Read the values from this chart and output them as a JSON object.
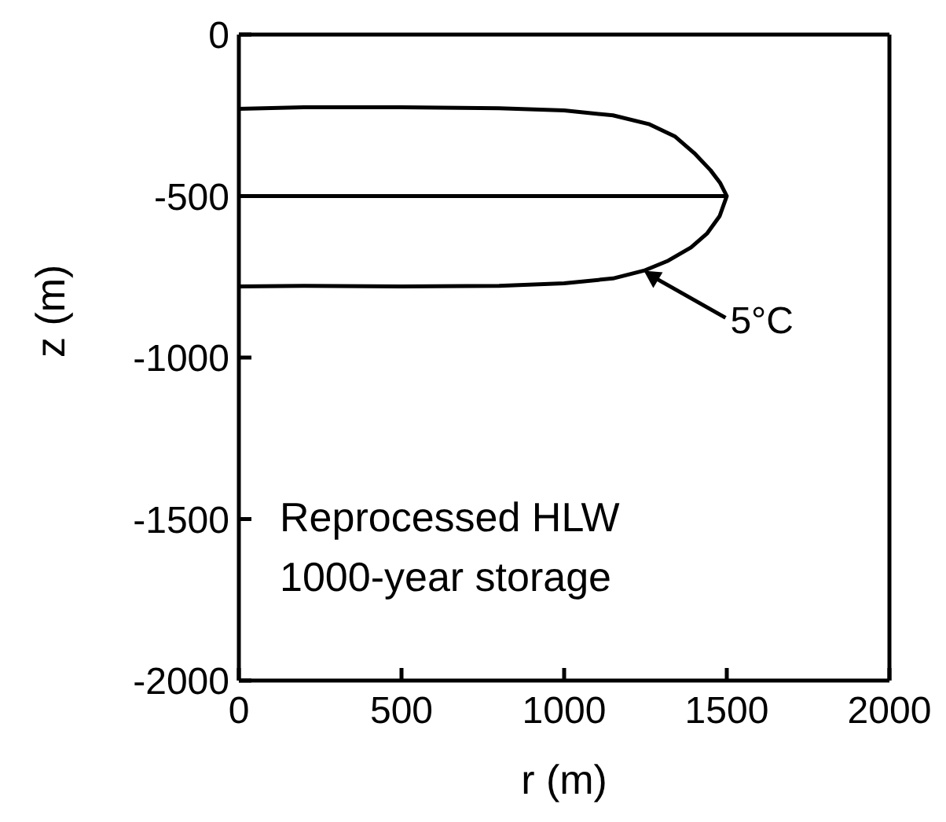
{
  "chart_data": {
    "type": "line",
    "xlabel": "r (m)",
    "ylabel": "z (m)",
    "xlim": [
      0,
      2000
    ],
    "ylim": [
      -2000,
      0
    ],
    "xticks": [
      0,
      500,
      1000,
      1500,
      2000
    ],
    "yticks": [
      0,
      -500,
      -1000,
      -1500,
      -2000
    ],
    "marker": "none",
    "line_style": "solid",
    "series": [
      {
        "color": "#000000",
        "x": [
          0,
          200,
          500,
          800,
          1000,
          1150,
          1260,
          1340,
          1400,
          1450,
          1480,
          1500,
          1478,
          1440,
          1390,
          1320,
          1245,
          1150,
          1000,
          800,
          500,
          200,
          0
        ],
        "values": [
          -230,
          -225,
          -225,
          -228,
          -235,
          -250,
          -277,
          -315,
          -367,
          -420,
          -460,
          -500,
          -562,
          -615,
          -659,
          -700,
          -731,
          -755,
          -770,
          -778,
          -780,
          -778,
          -780
        ]
      },
      {
        "color": "#000000",
        "x": [
          0,
          1500
        ],
        "values": [
          -500,
          -500
        ]
      }
    ],
    "annotations": [
      {
        "text": "5°C",
        "x": 1245,
        "y": -731
      },
      "Reprocessed HLW",
      "1000-year storage"
    ]
  }
}
